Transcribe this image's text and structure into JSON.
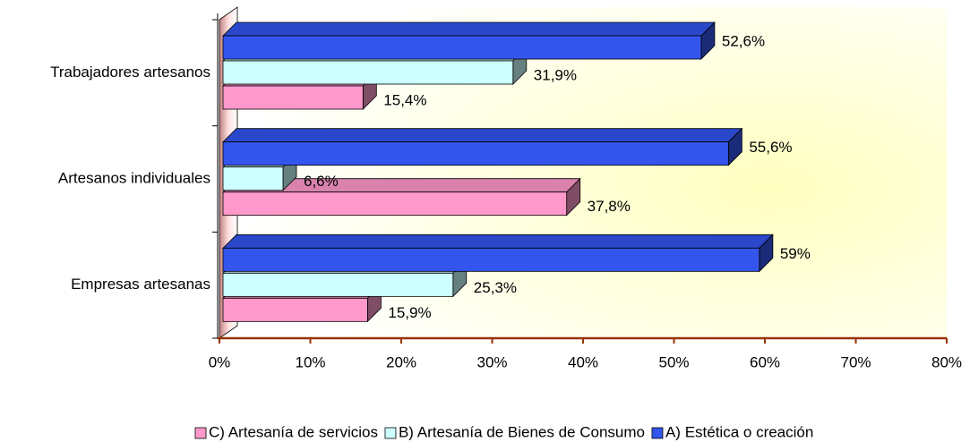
{
  "chart_data": {
    "type": "bar3d",
    "categories": [
      "Trabajadores artesanos",
      "Artesanos individuales",
      "Empresas artesanas"
    ],
    "series": [
      {
        "name": "C) Artesanía de servicios",
        "color": "#ff99cc",
        "values": [
          15.4,
          37.8,
          15.9
        ],
        "value_labels": [
          "15,4%",
          "37,8%",
          "15,9%"
        ]
      },
      {
        "name": "B) Artesanía de Bienes de Consumo",
        "color": "#ccffff",
        "values": [
          31.9,
          6.6,
          25.3
        ],
        "value_labels": [
          "31,9%",
          "6,6%",
          "25,3%"
        ]
      },
      {
        "name": "A) Estética o creación",
        "color": "#3355ee",
        "values": [
          52.6,
          55.6,
          59
        ],
        "value_labels": [
          "52,6%",
          "55,6%",
          "59%"
        ]
      }
    ],
    "xlim": [
      0,
      80
    ],
    "xticks": [
      {
        "value": 0,
        "label": "0%"
      },
      {
        "value": 10,
        "label": "10%"
      },
      {
        "value": 20,
        "label": "20%"
      },
      {
        "value": 30,
        "label": "30%"
      },
      {
        "value": 40,
        "label": "40%"
      },
      {
        "value": 50,
        "label": "50%"
      },
      {
        "value": 60,
        "label": "60%"
      },
      {
        "value": 70,
        "label": "70%"
      },
      {
        "value": 80,
        "label": "80%"
      }
    ],
    "legend": "bottom"
  }
}
